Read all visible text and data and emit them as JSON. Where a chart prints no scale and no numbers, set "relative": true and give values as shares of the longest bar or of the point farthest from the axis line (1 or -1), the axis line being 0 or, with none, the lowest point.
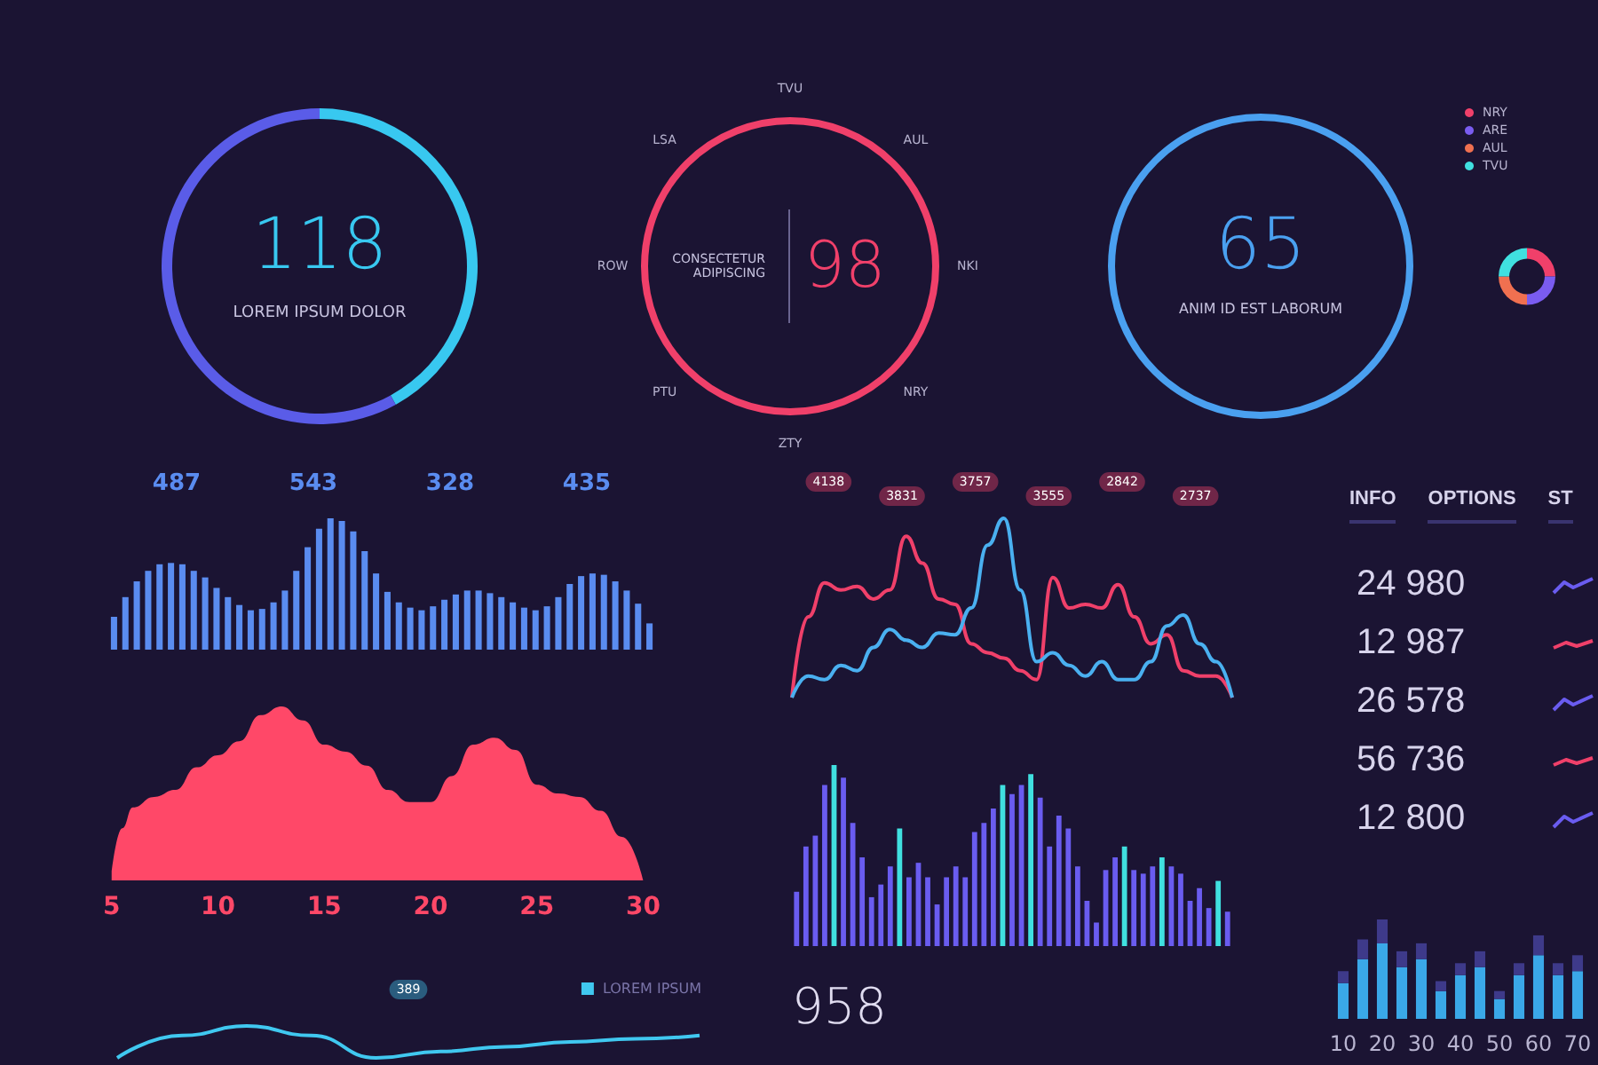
{
  "chart_data": [
    {
      "type": "donut",
      "title": "118",
      "subtitle": "LOREM IPSUM DOLOR",
      "categories": [
        null,
        null
      ],
      "values": [
        42,
        58
      ],
      "colors": [
        "#38c8f0",
        "#5a5ce8"
      ]
    },
    {
      "type": "other",
      "title": "98",
      "subtitle": "CONSECTETUR ADIPISCING",
      "colors": [
        "#f0406a"
      ],
      "annotations": [
        "TVU",
        "AUL",
        "NKI",
        "NRY",
        "ZTY",
        "PTU",
        "ROW",
        "LSA"
      ]
    },
    {
      "type": "other",
      "title": "65",
      "subtitle": "ANIM ID EST LABORUM",
      "colors": [
        "#4aa0f0"
      ]
    },
    {
      "type": "donut",
      "categories": [
        "NRY",
        "ARE",
        "AUL",
        "TVU"
      ],
      "values": [
        25,
        25,
        25,
        25
      ],
      "colors": [
        "#f0406a",
        "#7a5cf0",
        "#f07050",
        "#40e0e0"
      ],
      "legend": "top left"
    },
    {
      "type": "bar",
      "relative": true,
      "annotations": [
        "487",
        "543",
        "328",
        "435"
      ],
      "categories": [
        null,
        null,
        null,
        null,
        null,
        null,
        null,
        null,
        null,
        null,
        null,
        null,
        null,
        null,
        null,
        null,
        null,
        null,
        null,
        null,
        null,
        null,
        null,
        null,
        null,
        null,
        null,
        null,
        null,
        null,
        null,
        null,
        null,
        null,
        null,
        null,
        null,
        null,
        null,
        null,
        null,
        null,
        null,
        null,
        null,
        null,
        null,
        null
      ],
      "series": [
        {
          "color": "#5a8cf0",
          "values": [
            0.25,
            0.4,
            0.52,
            0.6,
            0.65,
            0.66,
            0.65,
            0.6,
            0.55,
            0.47,
            0.4,
            0.34,
            0.3,
            0.31,
            0.36,
            0.45,
            0.6,
            0.78,
            0.92,
            1,
            0.98,
            0.9,
            0.75,
            0.58,
            0.44,
            0.36,
            0.32,
            0.3,
            0.33,
            0.38,
            0.42,
            0.45,
            0.45,
            0.43,
            0.4,
            0.36,
            0.32,
            0.3,
            0.33,
            0.4,
            0.5,
            0.56,
            0.58,
            0.57,
            0.52,
            0.45,
            0.35,
            0.2
          ]
        }
      ]
    },
    {
      "type": "area",
      "relative": true,
      "x": [
        5,
        5.5,
        6,
        7,
        8,
        9,
        10,
        11,
        12,
        13,
        14,
        15,
        16,
        17,
        18,
        19,
        20,
        21,
        22,
        23,
        24,
        25,
        26,
        27,
        28,
        29,
        30
      ],
      "xlim": [
        5,
        30
      ],
      "xticks": [
        5,
        10,
        15,
        20,
        25,
        30
      ],
      "tick_labels": "x",
      "series": [
        {
          "color": "#ff4868",
          "values": [
            0.05,
            0.3,
            0.42,
            0.48,
            0.52,
            0.65,
            0.72,
            0.8,
            0.95,
            1,
            0.92,
            0.78,
            0.74,
            0.66,
            0.52,
            0.45,
            0.45,
            0.6,
            0.78,
            0.82,
            0.75,
            0.55,
            0.5,
            0.48,
            0.4,
            0.25,
            0
          ]
        }
      ]
    },
    {
      "type": "line",
      "relative": true,
      "marker": "none",
      "annotations": [
        "4138",
        "3831",
        "3757",
        "3555",
        "2842",
        "2737"
      ],
      "categories": [
        null,
        null,
        null,
        null,
        null,
        null,
        null,
        null,
        null,
        null,
        null,
        null,
        null,
        null,
        null,
        null,
        null,
        null,
        null,
        null,
        null,
        null,
        null,
        null,
        null,
        null,
        null,
        null
      ],
      "series": [
        {
          "color": "#f0406a",
          "values": [
            0,
            0.45,
            0.64,
            0.6,
            0.62,
            0.55,
            0.6,
            0.9,
            0.75,
            0.55,
            0.52,
            0.3,
            0.25,
            0.22,
            0.15,
            0.1,
            0.67,
            0.5,
            0.52,
            0.5,
            0.63,
            0.45,
            0.3,
            0.35,
            0.15,
            0.12,
            0.12,
            0
          ]
        },
        {
          "color": "#4ab0f0",
          "values": [
            0,
            0.12,
            0.1,
            0.18,
            0.15,
            0.28,
            0.38,
            0.32,
            0.28,
            0.36,
            0.35,
            0.5,
            0.85,
            1,
            0.6,
            0.2,
            0.25,
            0.18,
            0.12,
            0.2,
            0.1,
            0.1,
            0.2,
            0.4,
            0.46,
            0.3,
            0.2,
            0
          ]
        }
      ]
    },
    {
      "type": "bar",
      "relative": true,
      "annotations": [
        "958"
      ],
      "categories": [
        null,
        null,
        null,
        null,
        null,
        null,
        null,
        null,
        null,
        null,
        null,
        null,
        null,
        null,
        null,
        null,
        null,
        null,
        null,
        null,
        null,
        null,
        null,
        null,
        null,
        null,
        null,
        null,
        null,
        null,
        null,
        null,
        null,
        null,
        null,
        null,
        null,
        null,
        null,
        null,
        null,
        null,
        null,
        null,
        null,
        null,
        null
      ],
      "values": [
        0.3,
        0.55,
        0.61,
        0.89,
        1,
        0.93,
        0.68,
        0.49,
        0.27,
        0.34,
        0.44,
        0.65,
        0.38,
        0.46,
        0.38,
        0.23,
        0.38,
        0.44,
        0.38,
        0.63,
        0.68,
        0.76,
        0.89,
        0.84,
        0.89,
        0.95,
        0.82,
        0.55,
        0.72,
        0.65,
        0.44,
        0.25,
        0.13,
        0.42,
        0.49,
        0.55,
        0.42,
        0.4,
        0.44,
        0.49,
        0.44,
        0.4,
        0.25,
        0.32,
        0.21,
        0.36,
        0.19
      ],
      "colors": [
        "#6a5cf0",
        "#6a5cf0",
        "#6a5cf0",
        "#6a5cf0",
        "#40e0e0",
        "#6a5cf0",
        "#6a5cf0",
        "#6a5cf0",
        "#6a5cf0",
        "#6a5cf0",
        "#6a5cf0",
        "#40e0e0",
        "#6a5cf0",
        "#6a5cf0",
        "#6a5cf0",
        "#6a5cf0",
        "#6a5cf0",
        "#6a5cf0",
        "#6a5cf0",
        "#6a5cf0",
        "#6a5cf0",
        "#6a5cf0",
        "#40e0e0",
        "#6a5cf0",
        "#6a5cf0",
        "#40e0e0",
        "#6a5cf0",
        "#6a5cf0",
        "#6a5cf0",
        "#6a5cf0",
        "#6a5cf0",
        "#6a5cf0",
        "#6a5cf0",
        "#6a5cf0",
        "#6a5cf0",
        "#40e0e0",
        "#6a5cf0",
        "#6a5cf0",
        "#6a5cf0",
        "#40e0e0",
        "#6a5cf0",
        "#6a5cf0",
        "#6a5cf0",
        "#6a5cf0",
        "#6a5cf0",
        "#40e0e0",
        "#6a5cf0"
      ]
    },
    {
      "type": "other",
      "annotations": [
        "INFO",
        "OPTIONS",
        "ST",
        "24 980",
        "12 987",
        "26 578",
        "56 736",
        "12 800"
      ],
      "colors": [
        "#6a5cf0",
        "#f0406a",
        "#6a5cf0",
        "#f0406a",
        "#6a5cf0"
      ]
    },
    {
      "type": "bar",
      "relative": true,
      "stacked": true,
      "tick_labels": "x",
      "categories": [
        "10",
        null,
        "20",
        null,
        "30",
        null,
        "40",
        null,
        "50",
        null,
        "60",
        null,
        "70"
      ],
      "series": [
        {
          "color": "#3aa8e8",
          "values": [
            0.36,
            0.6,
            0.76,
            0.52,
            0.6,
            0.28,
            0.44,
            0.52,
            0.2,
            0.44,
            0.64,
            0.44,
            0.48
          ]
        },
        {
          "color": "#3e3a8a",
          "values": [
            0.12,
            0.2,
            0.24,
            0.16,
            0.16,
            0.1,
            0.12,
            0.16,
            0.08,
            0.12,
            0.2,
            0.12,
            0.16
          ]
        }
      ]
    },
    {
      "type": "line",
      "relative": true,
      "marker": "none",
      "legend": "top right",
      "annotations": [
        "389"
      ],
      "categories": [
        null,
        null,
        null,
        null,
        null,
        null,
        null,
        null,
        null,
        null
      ],
      "series": [
        {
          "name": "LOREM IPSUM",
          "color": "#40c8f0",
          "values": [
            0,
            0.7,
            1,
            0.7,
            0,
            0.2,
            0.35,
            0.5,
            0.6,
            0.7
          ]
        }
      ]
    }
  ]
}
